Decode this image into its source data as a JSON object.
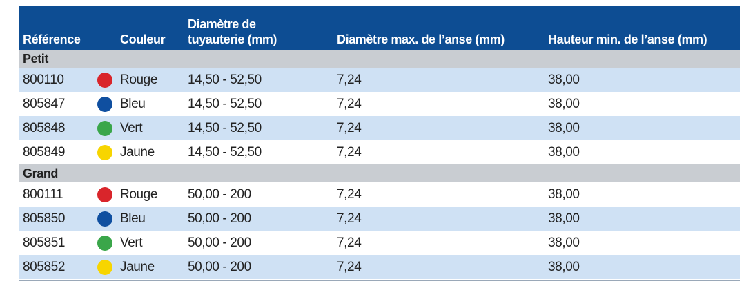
{
  "table": {
    "header": [
      [
        "Référence"
      ],
      [
        "Couleur"
      ],
      [
        "Diamètre de",
        "tuyauterie (mm)"
      ],
      [
        "Diamètre max. de l’anse (mm)"
      ],
      [
        "Hauteur min. de l’anse (mm)"
      ]
    ],
    "groups": [
      {
        "name": "Petit",
        "rows": [
          {
            "ref": "800110",
            "color": "#d9252b",
            "colour_name": "Rouge",
            "diameter": "14,50 - 52,50",
            "max": "7,24",
            "min": "38,00"
          },
          {
            "ref": "805847",
            "color": "#0f4fa0",
            "colour_name": "Bleu",
            "diameter": "14,50 - 52,50",
            "max": "7,24",
            "min": "38,00"
          },
          {
            "ref": "805848",
            "color": "#3aa64a",
            "colour_name": "Vert",
            "diameter": "14,50 - 52,50",
            "max": "7,24",
            "min": "38,00"
          },
          {
            "ref": "805849",
            "color": "#f7d500",
            "colour_name": "Jaune",
            "diameter": "14,50 - 52,50",
            "max": "7,24",
            "min": "38,00"
          }
        ]
      },
      {
        "name": "Grand",
        "rows": [
          {
            "ref": "800111",
            "color": "#d9252b",
            "colour_name": "Rouge",
            "diameter": "50,00 - 200",
            "max": "7,24",
            "min": "38,00"
          },
          {
            "ref": "805850",
            "color": "#0f4fa0",
            "colour_name": "Bleu",
            "diameter": "50,00 - 200",
            "max": "7,24",
            "min": "38,00"
          },
          {
            "ref": "805851",
            "color": "#3aa64a",
            "colour_name": "Vert",
            "diameter": "50,00 - 200",
            "max": "7,24",
            "min": "38,00"
          },
          {
            "ref": "805852",
            "color": "#f7d500",
            "colour_name": "Jaune",
            "diameter": "50,00 - 200",
            "max": "7,24",
            "min": "38,00"
          }
        ]
      }
    ]
  }
}
